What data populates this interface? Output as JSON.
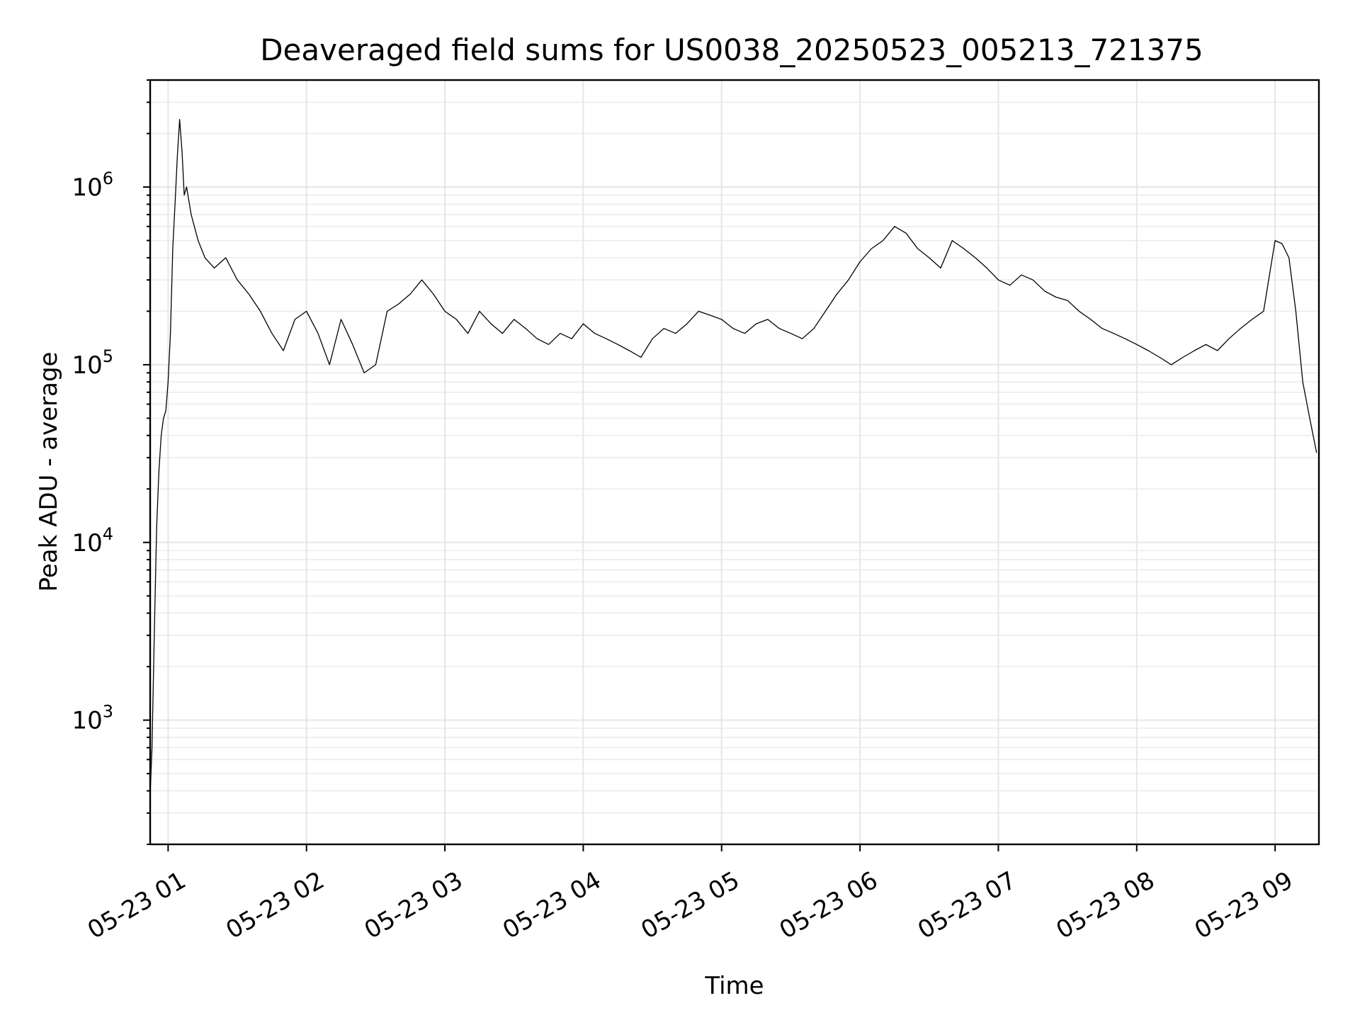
{
  "chart_data": {
    "type": "line",
    "title": "Deaveraged field sums for US0038_20250523_005213_721375",
    "xlabel": "Time",
    "ylabel": "Peak ADU - average",
    "xscale": "time",
    "yscale": "log",
    "xlim": [
      "2025-05-23T00:52:13",
      "2025-05-23T09:19:00"
    ],
    "ylim": [
      200,
      4000000
    ],
    "grid": true,
    "x_ticks": [
      "05-23 01",
      "05-23 02",
      "05-23 03",
      "05-23 04",
      "05-23 05",
      "05-23 06",
      "05-23 07",
      "05-23 08",
      "05-23 09"
    ],
    "x_tick_times": [
      "2025-05-23T01:00:00",
      "2025-05-23T02:00:00",
      "2025-05-23T03:00:00",
      "2025-05-23T04:00:00",
      "2025-05-23T05:00:00",
      "2025-05-23T06:00:00",
      "2025-05-23T07:00:00",
      "2025-05-23T08:00:00",
      "2025-05-23T09:00:00"
    ],
    "y_ticks": [
      {
        "value": 1000,
        "label": "10",
        "exp": "3"
      },
      {
        "value": 10000,
        "label": "10",
        "exp": "4"
      },
      {
        "value": 100000,
        "label": "10",
        "exp": "5"
      },
      {
        "value": 1000000,
        "label": "10",
        "exp": "6"
      }
    ],
    "series": [
      {
        "color": "#000000",
        "x": [
          "2025-05-23T00:52:13",
          "2025-05-23T00:53:00",
          "2025-05-23T00:54:00",
          "2025-05-23T00:55:00",
          "2025-05-23T00:56:00",
          "2025-05-23T00:57:00",
          "2025-05-23T00:58:00",
          "2025-05-23T00:59:00",
          "2025-05-23T01:00:00",
          "2025-05-23T01:01:00",
          "2025-05-23T01:02:00",
          "2025-05-23T01:03:00",
          "2025-05-23T01:04:00",
          "2025-05-23T01:05:00",
          "2025-05-23T01:06:00",
          "2025-05-23T01:07:00",
          "2025-05-23T01:08:00",
          "2025-05-23T01:10:00",
          "2025-05-23T01:13:00",
          "2025-05-23T01:16:00",
          "2025-05-23T01:20:00",
          "2025-05-23T01:25:00",
          "2025-05-23T01:30:00",
          "2025-05-23T01:35:00",
          "2025-05-23T01:40:00",
          "2025-05-23T01:45:00",
          "2025-05-23T01:50:00",
          "2025-05-23T01:55:00",
          "2025-05-23T02:00:00",
          "2025-05-23T02:05:00",
          "2025-05-23T02:10:00",
          "2025-05-23T02:15:00",
          "2025-05-23T02:20:00",
          "2025-05-23T02:25:00",
          "2025-05-23T02:30:00",
          "2025-05-23T02:35:00",
          "2025-05-23T02:40:00",
          "2025-05-23T02:45:00",
          "2025-05-23T02:50:00",
          "2025-05-23T02:55:00",
          "2025-05-23T03:00:00",
          "2025-05-23T03:05:00",
          "2025-05-23T03:10:00",
          "2025-05-23T03:15:00",
          "2025-05-23T03:20:00",
          "2025-05-23T03:25:00",
          "2025-05-23T03:30:00",
          "2025-05-23T03:35:00",
          "2025-05-23T03:40:00",
          "2025-05-23T03:45:00",
          "2025-05-23T03:50:00",
          "2025-05-23T03:55:00",
          "2025-05-23T04:00:00",
          "2025-05-23T04:05:00",
          "2025-05-23T04:10:00",
          "2025-05-23T04:15:00",
          "2025-05-23T04:20:00",
          "2025-05-23T04:25:00",
          "2025-05-23T04:30:00",
          "2025-05-23T04:35:00",
          "2025-05-23T04:40:00",
          "2025-05-23T04:45:00",
          "2025-05-23T04:50:00",
          "2025-05-23T04:55:00",
          "2025-05-23T05:00:00",
          "2025-05-23T05:05:00",
          "2025-05-23T05:10:00",
          "2025-05-23T05:15:00",
          "2025-05-23T05:20:00",
          "2025-05-23T05:25:00",
          "2025-05-23T05:30:00",
          "2025-05-23T05:35:00",
          "2025-05-23T05:40:00",
          "2025-05-23T05:45:00",
          "2025-05-23T05:50:00",
          "2025-05-23T05:55:00",
          "2025-05-23T06:00:00",
          "2025-05-23T06:05:00",
          "2025-05-23T06:10:00",
          "2025-05-23T06:15:00",
          "2025-05-23T06:20:00",
          "2025-05-23T06:25:00",
          "2025-05-23T06:30:00",
          "2025-05-23T06:35:00",
          "2025-05-23T06:40:00",
          "2025-05-23T06:45:00",
          "2025-05-23T06:50:00",
          "2025-05-23T06:55:00",
          "2025-05-23T07:00:00",
          "2025-05-23T07:05:00",
          "2025-05-23T07:10:00",
          "2025-05-23T07:15:00",
          "2025-05-23T07:20:00",
          "2025-05-23T07:25:00",
          "2025-05-23T07:30:00",
          "2025-05-23T07:35:00",
          "2025-05-23T07:40:00",
          "2025-05-23T07:45:00",
          "2025-05-23T07:50:00",
          "2025-05-23T07:55:00",
          "2025-05-23T08:00:00",
          "2025-05-23T08:05:00",
          "2025-05-23T08:10:00",
          "2025-05-23T08:15:00",
          "2025-05-23T08:20:00",
          "2025-05-23T08:25:00",
          "2025-05-23T08:30:00",
          "2025-05-23T08:35:00",
          "2025-05-23T08:40:00",
          "2025-05-23T08:45:00",
          "2025-05-23T08:50:00",
          "2025-05-23T08:55:00",
          "2025-05-23T09:00:00",
          "2025-05-23T09:03:00",
          "2025-05-23T09:06:00",
          "2025-05-23T09:09:00",
          "2025-05-23T09:12:00",
          "2025-05-23T09:15:00",
          "2025-05-23T09:18:00"
        ],
        "y": [
          380,
          700,
          3000,
          12000,
          25000,
          40000,
          50000,
          55000,
          80000,
          150000,
          450000,
          800000,
          1500000,
          2400000,
          1600000,
          900000,
          1000000,
          700000,
          500000,
          400000,
          350000,
          400000,
          300000,
          250000,
          200000,
          150000,
          120000,
          180000,
          200000,
          150000,
          100000,
          180000,
          130000,
          90000,
          100000,
          200000,
          220000,
          250000,
          300000,
          250000,
          200000,
          180000,
          150000,
          200000,
          170000,
          150000,
          180000,
          160000,
          140000,
          130000,
          150000,
          140000,
          170000,
          150000,
          140000,
          130000,
          120000,
          110000,
          140000,
          160000,
          150000,
          170000,
          200000,
          190000,
          180000,
          160000,
          150000,
          170000,
          180000,
          160000,
          150000,
          140000,
          160000,
          200000,
          250000,
          300000,
          380000,
          450000,
          500000,
          600000,
          550000,
          450000,
          400000,
          350000,
          500000,
          450000,
          400000,
          350000,
          300000,
          280000,
          320000,
          300000,
          260000,
          240000,
          230000,
          200000,
          180000,
          160000,
          150000,
          140000,
          130000,
          120000,
          110000,
          100000,
          110000,
          120000,
          130000,
          120000,
          140000,
          160000,
          180000,
          200000,
          500000,
          480000,
          400000,
          200000,
          80000,
          50000,
          32000
        ]
      }
    ]
  }
}
